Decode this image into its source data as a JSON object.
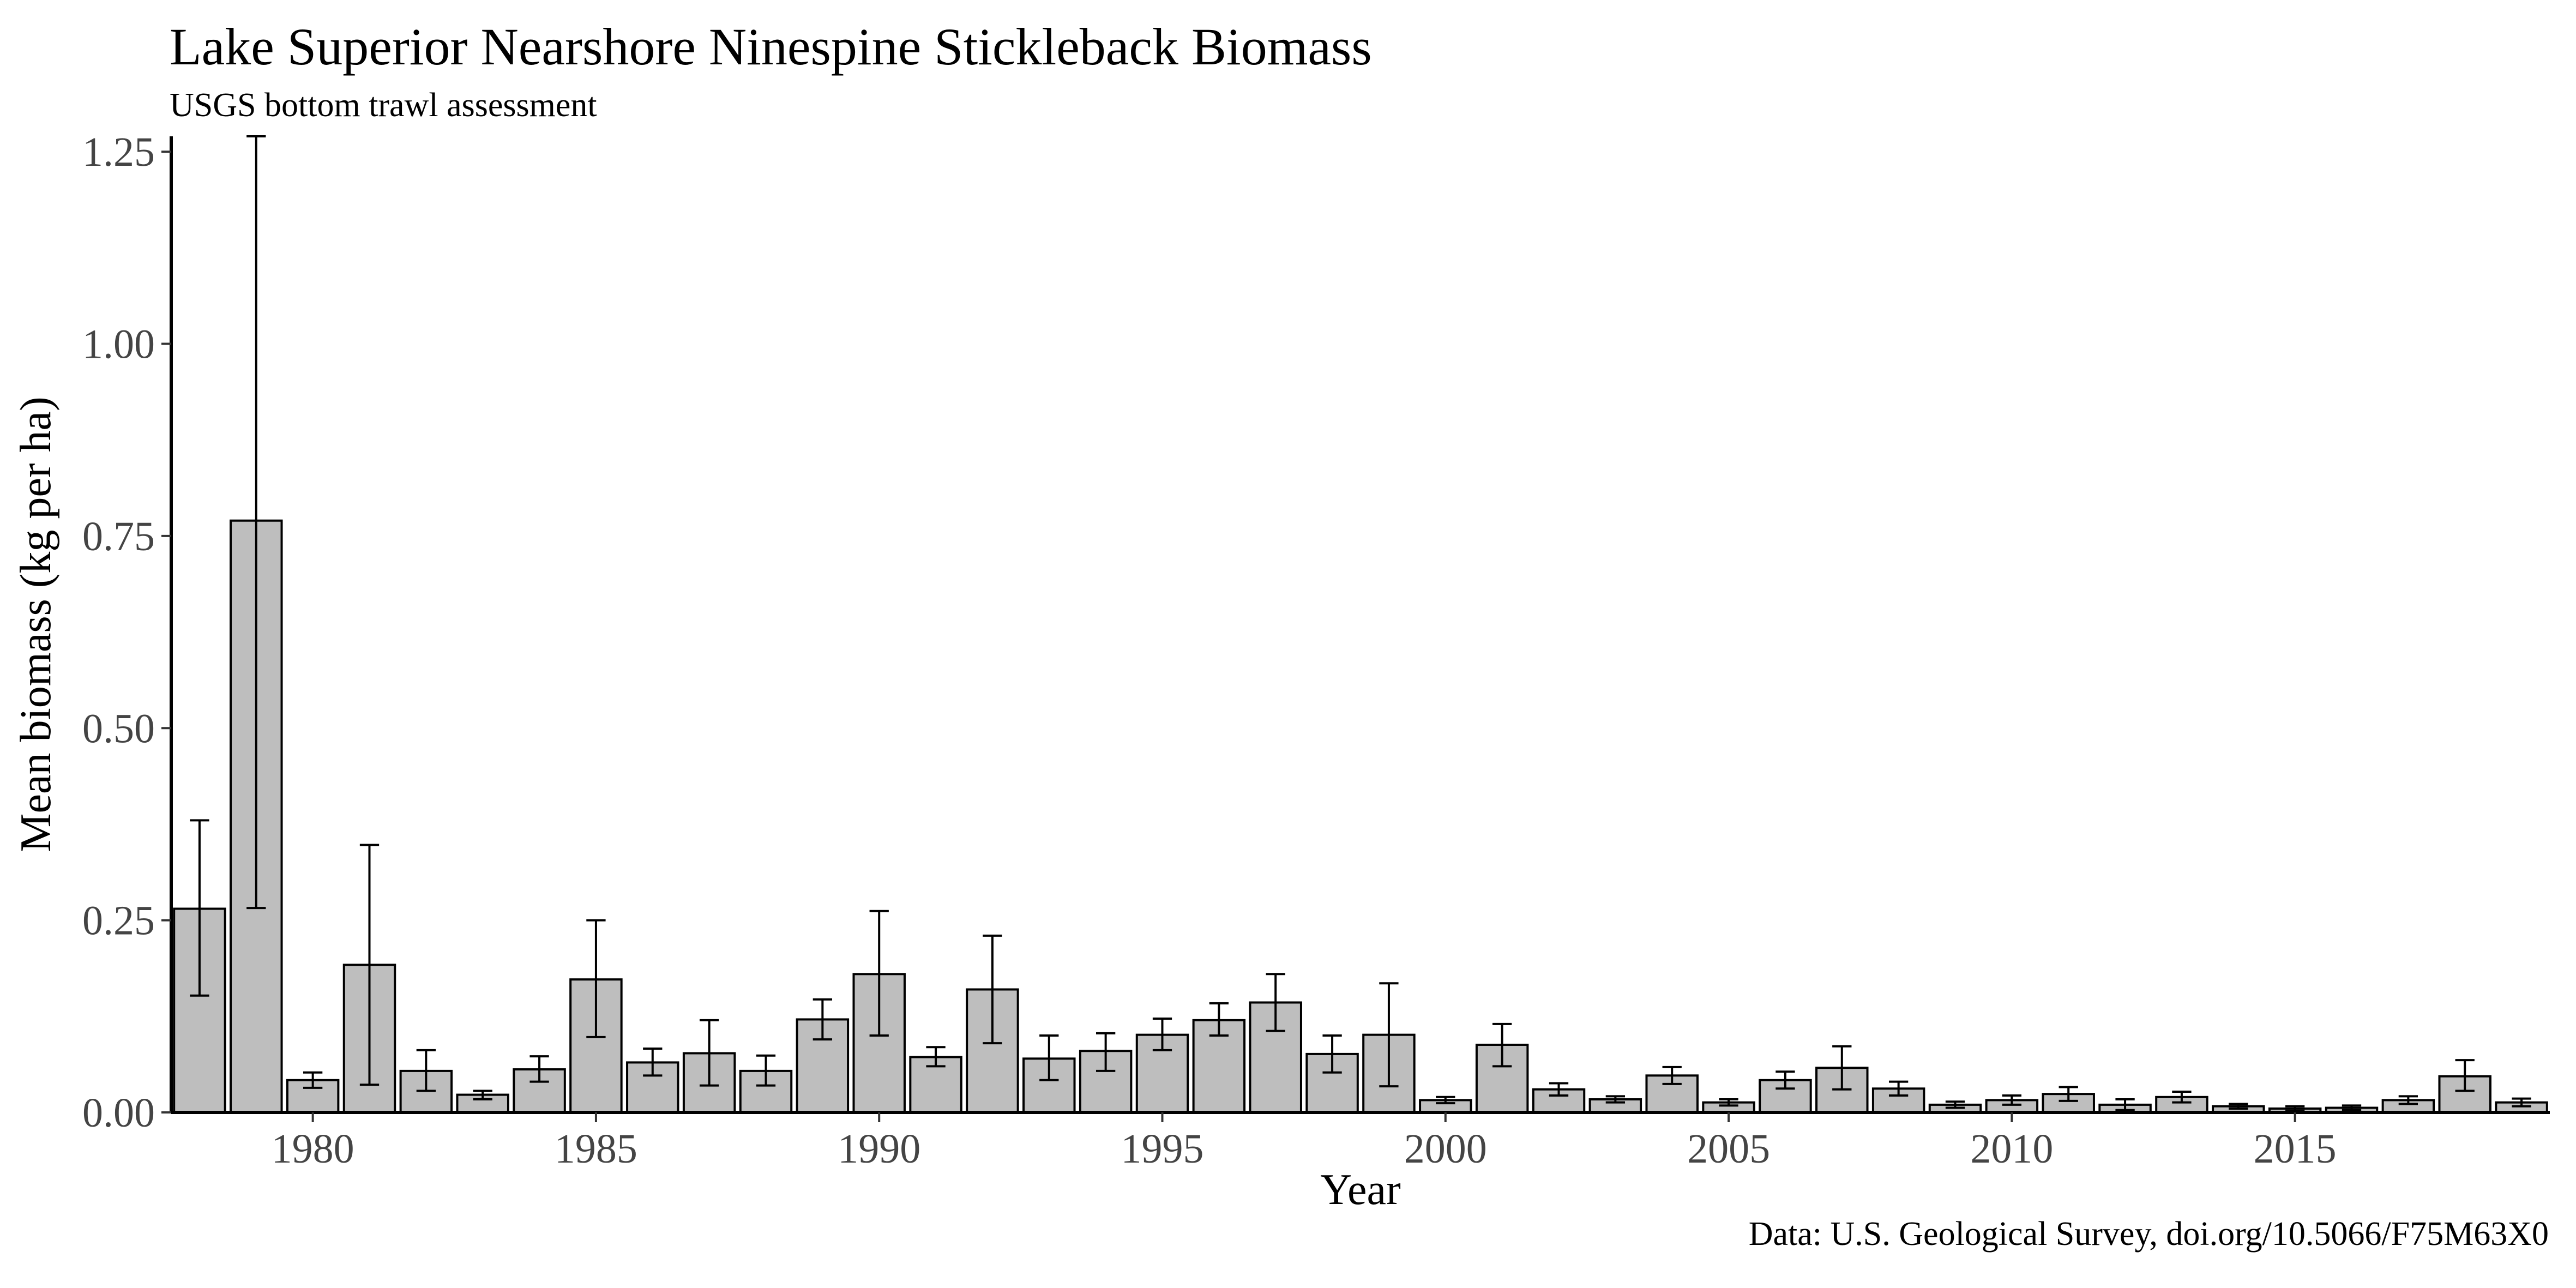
{
  "chart_data": {
    "type": "bar",
    "title": "Lake Superior Nearshore Ninespine Stickleback Biomass",
    "subtitle": "USGS bottom trawl assessment",
    "caption": "Data: U.S. Geological Survey, doi.org/10.5066/F75M63X0",
    "xlabel": "Year",
    "ylabel": "Mean biomass (kg per ha)",
    "xlim": [
      1977.5,
      2019.5
    ],
    "ylim": [
      0,
      1.27
    ],
    "xticks": [
      1980,
      1985,
      1990,
      1995,
      2000,
      2005,
      2010,
      2015
    ],
    "yticks": [
      0,
      0.25,
      0.5,
      0.75,
      1.0,
      1.25
    ],
    "ytick_labels": [
      "0.00",
      "0.25",
      "0.50",
      "0.75",
      "1.00",
      "1.25"
    ],
    "grid": false,
    "bar_fill": "#bebebe",
    "bar_stroke": "#000000",
    "error_bars": true,
    "x": [
      1978,
      1979,
      1980,
      1981,
      1982,
      1983,
      1984,
      1985,
      1986,
      1987,
      1988,
      1989,
      1990,
      1991,
      1992,
      1993,
      1994,
      1995,
      1996,
      1997,
      1998,
      1999,
      2000,
      2001,
      2002,
      2003,
      2004,
      2005,
      2006,
      2007,
      2008,
      2009,
      2010,
      2011,
      2012,
      2013,
      2014,
      2015,
      2016,
      2017,
      2018,
      2019
    ],
    "values": [
      0.265,
      0.77,
      0.042,
      0.192,
      0.054,
      0.023,
      0.056,
      0.173,
      0.065,
      0.077,
      0.054,
      0.121,
      0.18,
      0.072,
      0.16,
      0.07,
      0.08,
      0.101,
      0.12,
      0.143,
      0.076,
      0.101,
      0.016,
      0.088,
      0.03,
      0.017,
      0.048,
      0.013,
      0.042,
      0.058,
      0.031,
      0.01,
      0.016,
      0.024,
      0.01,
      0.02,
      0.008,
      0.005,
      0.006,
      0.016,
      0.047,
      0.013
    ],
    "err_low": [
      0.152,
      0.266,
      0.032,
      0.036,
      0.028,
      0.017,
      0.04,
      0.098,
      0.048,
      0.035,
      0.035,
      0.095,
      0.1,
      0.06,
      0.09,
      0.042,
      0.054,
      0.081,
      0.1,
      0.106,
      0.052,
      0.034,
      0.012,
      0.06,
      0.022,
      0.013,
      0.037,
      0.009,
      0.031,
      0.03,
      0.022,
      0.006,
      0.01,
      0.015,
      0.003,
      0.013,
      0.005,
      0.002,
      0.003,
      0.011,
      0.028,
      0.008
    ],
    "err_high": [
      0.38,
      1.27,
      0.052,
      0.348,
      0.081,
      0.028,
      0.073,
      0.25,
      0.083,
      0.12,
      0.074,
      0.147,
      0.262,
      0.085,
      0.23,
      0.1,
      0.103,
      0.122,
      0.142,
      0.18,
      0.1,
      0.168,
      0.02,
      0.115,
      0.038,
      0.021,
      0.059,
      0.017,
      0.053,
      0.086,
      0.04,
      0.014,
      0.022,
      0.033,
      0.017,
      0.027,
      0.011,
      0.008,
      0.009,
      0.021,
      0.068,
      0.018
    ]
  }
}
